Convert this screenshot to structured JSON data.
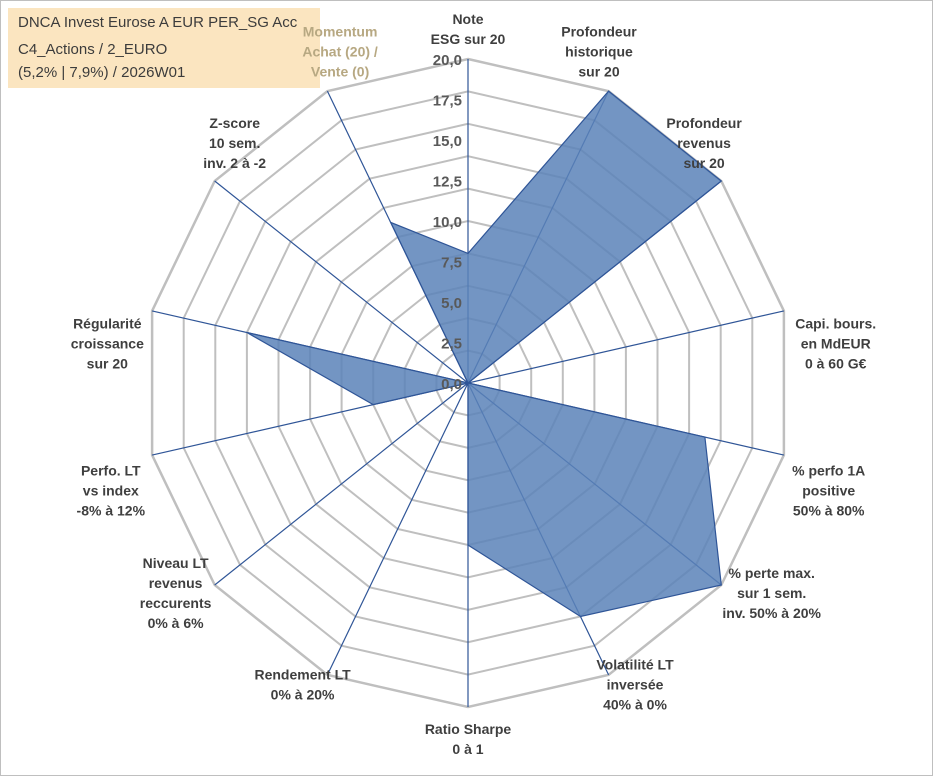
{
  "info": {
    "line1": "DNCA Invest Eurose A EUR PER_SG Acc",
    "line2": "C4_Actions / 2_EURO",
    "line3": "(5,2% | 7,9%) / 2026W01"
  },
  "chart_data": {
    "type": "radar",
    "rmax": 20,
    "ticks": [
      "0,0",
      "2,5",
      "5,0",
      "7,5",
      "10,0",
      "12,5",
      "15,0",
      "17,5",
      "20,0"
    ],
    "grid_rings": 10,
    "axes": [
      {
        "lines": [
          "Note",
          "ESG sur 20"
        ],
        "faded": false
      },
      {
        "lines": [
          "Profondeur",
          "historique",
          "sur 20"
        ],
        "faded": false
      },
      {
        "lines": [
          "Profondeur",
          "revenus",
          "sur 20"
        ],
        "faded": false
      },
      {
        "lines": [
          "Capi. bours.",
          "en MdEUR",
          "0 à 60 G€"
        ],
        "faded": false
      },
      {
        "lines": [
          "% perfo 1A",
          "positive",
          "50% à 80%"
        ],
        "faded": false
      },
      {
        "lines": [
          "% perte max.",
          "sur 1 sem.",
          "inv. 50% à 20%"
        ],
        "faded": false
      },
      {
        "lines": [
          "Volatilité LT",
          "inversée",
          "40% à 0%"
        ],
        "faded": false
      },
      {
        "lines": [
          "Ratio Sharpe",
          "0 à 1"
        ],
        "faded": false
      },
      {
        "lines": [
          "Rendement LT",
          "0% à 20%"
        ],
        "faded": false
      },
      {
        "lines": [
          "Niveau LT",
          "revenus",
          "reccurents",
          "0% à 6%"
        ],
        "faded": false
      },
      {
        "lines": [
          "Perfo. LT",
          "vs index",
          "-8% à 12%"
        ],
        "faded": false
      },
      {
        "lines": [
          "Régularité",
          "croissance",
          "sur 20"
        ],
        "faded": false
      },
      {
        "lines": [
          "Z-score",
          "10 sem.",
          "inv. 2 à -2"
        ],
        "faded": false
      },
      {
        "lines": [
          "Momentum",
          "Achat (20) /",
          "Vente (0)"
        ],
        "faded": true
      }
    ],
    "series": [
      {
        "values": [
          8,
          20,
          20,
          0,
          15,
          20,
          16,
          10,
          0,
          0,
          6,
          14,
          0,
          11
        ]
      }
    ],
    "colors": {
      "fill": "#5a82b8",
      "stroke": "#2f5597",
      "grid": "#bfbfbf",
      "spoke": "#2f5597"
    }
  }
}
